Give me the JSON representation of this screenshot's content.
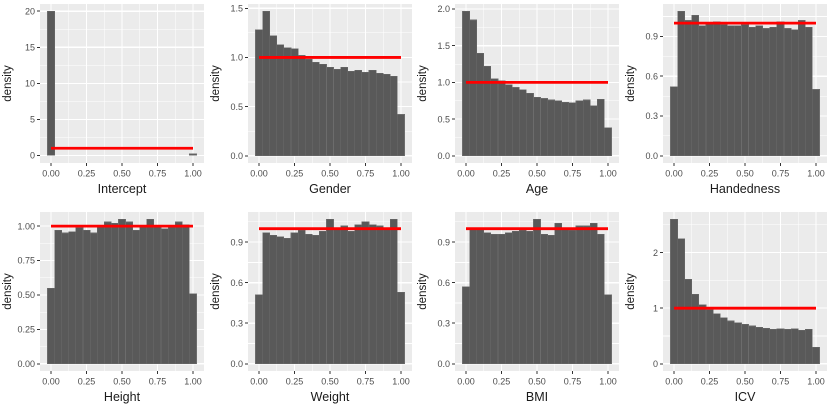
{
  "style": {
    "panel_bg": "#EBEBEB",
    "grid_color": "#FFFFFF",
    "bar_color": "#595959",
    "bar_seam_color": "#6C6C6C",
    "ref_line_color": "#FF0000",
    "tick_mark_color": "#333333",
    "tick_label_color": "#4D4D4D",
    "axis_title_color": "#1A1A1A"
  },
  "chart_data": [
    {
      "type": "bar",
      "subtype": "histogram",
      "xlabel": "Intercept",
      "ylabel": "density",
      "bin_start": 0.0,
      "bin_step": 0.05,
      "bin_halfwidth": 0.025,
      "values": [
        20,
        0,
        0,
        0,
        0,
        0,
        0,
        0,
        0,
        0,
        0,
        0,
        0,
        0,
        0,
        0,
        0,
        0,
        0,
        0,
        0.2
      ],
      "x_ticks": {
        "values": [
          0,
          0.25,
          0.5,
          0.75,
          1
        ],
        "labels": [
          "0.00",
          "0.25",
          "0.50",
          "0.75",
          "1.00"
        ]
      },
      "y_ticks": {
        "values": [
          0,
          5,
          10,
          15,
          20
        ],
        "labels": [
          "0",
          "5",
          "10",
          "15",
          "20"
        ]
      },
      "xlim": [
        -0.0775,
        1.0775
      ],
      "ylim": [
        -1.05,
        21.0
      ],
      "ref_line_y": 1.0,
      "ref_line_x": [
        0,
        1
      ],
      "grid": true,
      "legend": "none"
    },
    {
      "type": "bar",
      "subtype": "histogram",
      "xlabel": "Gender",
      "ylabel": "density",
      "bin_start": 0.0,
      "bin_step": 0.05,
      "bin_halfwidth": 0.025,
      "values": [
        1.28,
        1.47,
        1.22,
        1.13,
        1.1,
        1.09,
        1.02,
        0.98,
        0.95,
        0.93,
        0.9,
        0.88,
        0.9,
        0.86,
        0.87,
        0.85,
        0.87,
        0.84,
        0.83,
        0.81,
        0.42
      ],
      "x_ticks": {
        "values": [
          0,
          0.25,
          0.5,
          0.75,
          1
        ],
        "labels": [
          "0.00",
          "0.25",
          "0.50",
          "0.75",
          "1.00"
        ]
      },
      "y_ticks": {
        "values": [
          0,
          0.5,
          1,
          1.5
        ],
        "labels": [
          "0.0",
          "0.5",
          "1.0",
          "1.5"
        ]
      },
      "xlim": [
        -0.0775,
        1.0775
      ],
      "ylim": [
        -0.0735,
        1.5435
      ],
      "ref_line_y": 1.0,
      "ref_line_x": [
        0,
        1
      ],
      "grid": true,
      "legend": "none"
    },
    {
      "type": "bar",
      "subtype": "histogram",
      "xlabel": "Age",
      "ylabel": "density",
      "bin_start": 0.0,
      "bin_step": 0.05,
      "bin_halfwidth": 0.025,
      "values": [
        1.97,
        1.85,
        1.4,
        1.22,
        1.05,
        1.02,
        0.97,
        0.93,
        0.9,
        0.85,
        0.8,
        0.78,
        0.76,
        0.75,
        0.73,
        0.72,
        0.75,
        0.76,
        0.68,
        0.77,
        0.38
      ],
      "x_ticks": {
        "values": [
          0,
          0.25,
          0.5,
          0.75,
          1
        ],
        "labels": [
          "0.00",
          "0.25",
          "0.50",
          "0.75",
          "1.00"
        ]
      },
      "y_ticks": {
        "values": [
          0,
          0.5,
          1,
          1.5,
          2
        ],
        "labels": [
          "0.0",
          "0.5",
          "1.0",
          "1.5",
          "2.0"
        ]
      },
      "xlim": [
        -0.0775,
        1.0775
      ],
      "ylim": [
        -0.0985,
        2.0685
      ],
      "ref_line_y": 1.0,
      "ref_line_x": [
        0,
        1
      ],
      "grid": true,
      "legend": "none"
    },
    {
      "type": "bar",
      "subtype": "histogram",
      "xlabel": "Handedness",
      "ylabel": "density",
      "bin_start": 0.0,
      "bin_step": 0.05,
      "bin_halfwidth": 0.025,
      "values": [
        0.52,
        1.09,
        1.02,
        1.06,
        0.98,
        1.0,
        1.01,
        0.99,
        0.98,
        0.98,
        0.99,
        0.97,
        0.98,
        0.96,
        0.97,
        1.01,
        0.96,
        0.95,
        1.02,
        0.97,
        0.5
      ],
      "x_ticks": {
        "values": [
          0,
          0.25,
          0.5,
          0.75,
          1
        ],
        "labels": [
          "0.00",
          "0.25",
          "0.50",
          "0.75",
          "1.00"
        ]
      },
      "y_ticks": {
        "values": [
          0,
          0.3,
          0.6,
          0.9
        ],
        "labels": [
          "0.0",
          "0.3",
          "0.6",
          "0.9"
        ]
      },
      "xlim": [
        -0.0775,
        1.0775
      ],
      "ylim": [
        -0.0545,
        1.1445
      ],
      "ref_line_y": 1.0,
      "ref_line_x": [
        0,
        1
      ],
      "grid": true,
      "legend": "none"
    },
    {
      "type": "bar",
      "subtype": "histogram",
      "xlabel": "Height",
      "ylabel": "density",
      "bin_start": 0.0,
      "bin_step": 0.05,
      "bin_halfwidth": 0.025,
      "values": [
        0.55,
        0.97,
        0.95,
        0.96,
        0.99,
        0.97,
        0.95,
        1.0,
        1.03,
        1.02,
        1.05,
        1.03,
        0.97,
        1.0,
        1.05,
        1.0,
        0.98,
        1.0,
        1.03,
        1.01,
        0.51
      ],
      "x_ticks": {
        "values": [
          0,
          0.25,
          0.5,
          0.75,
          1
        ],
        "labels": [
          "0.00",
          "0.25",
          "0.50",
          "0.75",
          "1.00"
        ]
      },
      "y_ticks": {
        "values": [
          0,
          0.25,
          0.5,
          0.75,
          1
        ],
        "labels": [
          "0.00",
          "0.25",
          "0.50",
          "0.75",
          "1.00"
        ]
      },
      "xlim": [
        -0.0775,
        1.0775
      ],
      "ylim": [
        -0.0525,
        1.1025
      ],
      "ref_line_y": 1.0,
      "ref_line_x": [
        0,
        1
      ],
      "grid": true,
      "legend": "none"
    },
    {
      "type": "bar",
      "subtype": "histogram",
      "xlabel": "Weight",
      "ylabel": "density",
      "bin_start": 0.0,
      "bin_step": 0.05,
      "bin_halfwidth": 0.025,
      "values": [
        0.51,
        0.97,
        0.95,
        0.94,
        0.93,
        0.97,
        0.99,
        0.96,
        0.95,
        0.98,
        1.07,
        1.0,
        1.02,
        0.98,
        1.03,
        1.05,
        1.03,
        1.02,
        1.0,
        1.07,
        0.53
      ],
      "x_ticks": {
        "values": [
          0,
          0.25,
          0.5,
          0.75,
          1
        ],
        "labels": [
          "0.00",
          "0.25",
          "0.50",
          "0.75",
          "1.00"
        ]
      },
      "y_ticks": {
        "values": [
          0,
          0.3,
          0.6,
          0.9
        ],
        "labels": [
          "0.0",
          "0.3",
          "0.6",
          "0.9"
        ]
      },
      "xlim": [
        -0.0775,
        1.0775
      ],
      "ylim": [
        -0.0535,
        1.1235
      ],
      "ref_line_y": 1.0,
      "ref_line_x": [
        0,
        1
      ],
      "grid": true,
      "legend": "none"
    },
    {
      "type": "bar",
      "subtype": "histogram",
      "xlabel": "BMI",
      "ylabel": "density",
      "bin_start": 0.0,
      "bin_step": 0.05,
      "bin_halfwidth": 0.025,
      "values": [
        0.57,
        1.0,
        1.0,
        0.97,
        0.96,
        0.96,
        0.97,
        0.98,
        0.99,
        0.98,
        1.07,
        0.96,
        0.95,
        1.04,
        1.0,
        0.99,
        1.02,
        1.02,
        1.04,
        0.96,
        0.51
      ],
      "x_ticks": {
        "values": [
          0,
          0.25,
          0.5,
          0.75,
          1
        ],
        "labels": [
          "0.00",
          "0.25",
          "0.50",
          "0.75",
          "1.00"
        ]
      },
      "y_ticks": {
        "values": [
          0,
          0.3,
          0.6,
          0.9
        ],
        "labels": [
          "0.0",
          "0.3",
          "0.6",
          "0.9"
        ]
      },
      "xlim": [
        -0.0775,
        1.0775
      ],
      "ylim": [
        -0.0535,
        1.1235
      ],
      "ref_line_y": 1.0,
      "ref_line_x": [
        0,
        1
      ],
      "grid": true,
      "legend": "none"
    },
    {
      "type": "bar",
      "subtype": "histogram",
      "xlabel": "ICV",
      "ylabel": "density",
      "bin_start": 0.0,
      "bin_step": 0.05,
      "bin_halfwidth": 0.025,
      "values": [
        2.6,
        2.25,
        1.52,
        1.25,
        1.06,
        0.97,
        0.9,
        0.83,
        0.77,
        0.74,
        0.71,
        0.68,
        0.66,
        0.64,
        0.62,
        0.63,
        0.62,
        0.63,
        0.6,
        0.62,
        0.3
      ],
      "x_ticks": {
        "values": [
          0,
          0.25,
          0.5,
          0.75,
          1
        ],
        "labels": [
          "0.00",
          "0.25",
          "0.50",
          "0.75",
          "1.00"
        ]
      },
      "y_ticks": {
        "values": [
          0,
          1,
          2
        ],
        "labels": [
          "0",
          "1",
          "2"
        ]
      },
      "xlim": [
        -0.0775,
        1.0775
      ],
      "ylim": [
        -0.13,
        2.73
      ],
      "ref_line_y": 1.0,
      "ref_line_x": [
        0,
        1
      ],
      "grid": true,
      "legend": "none"
    }
  ]
}
